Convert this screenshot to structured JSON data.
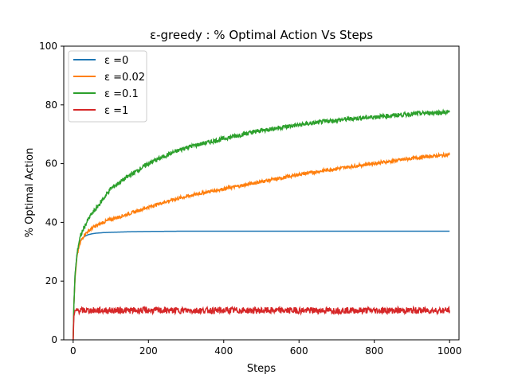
{
  "chart_data": {
    "type": "line",
    "title": "ε-greedy : % Optimal Action Vs Steps",
    "xlabel": "Steps",
    "ylabel": "% Optimal Action",
    "xlim": [
      -25,
      1025
    ],
    "ylim": [
      0,
      100
    ],
    "xticks": [
      0,
      200,
      400,
      600,
      800,
      1000
    ],
    "yticks": [
      0,
      20,
      40,
      60,
      80,
      100
    ],
    "grid": false,
    "legend_position": "top-left",
    "series": [
      {
        "name": "ε =0",
        "color": "#1f77b4",
        "x": [
          0,
          2,
          5,
          10,
          15,
          20,
          30,
          40,
          50,
          60,
          80,
          100,
          150,
          200,
          300,
          400,
          500,
          600,
          700,
          800,
          900,
          1000
        ],
        "y": [
          0,
          12,
          22,
          29,
          32,
          33.8,
          35.2,
          35.8,
          36.1,
          36.3,
          36.5,
          36.6,
          36.8,
          36.9,
          37,
          37,
          37,
          37,
          37,
          37,
          37,
          37
        ]
      },
      {
        "name": "ε =0.02",
        "color": "#ff7f0e",
        "x": [
          0,
          2,
          5,
          10,
          15,
          20,
          30,
          40,
          50,
          60,
          80,
          100,
          150,
          200,
          250,
          300,
          350,
          400,
          450,
          500,
          550,
          600,
          650,
          700,
          750,
          800,
          850,
          900,
          950,
          1000
        ],
        "y": [
          0,
          12,
          21,
          28,
          31.5,
          33.5,
          35.8,
          37,
          38,
          38.8,
          40,
          41,
          43,
          45.2,
          47.2,
          48.8,
          50.2,
          51.4,
          52.6,
          53.9,
          55,
          56.3,
          57.3,
          58.3,
          59.2,
          60.1,
          60.9,
          61.8,
          62.5,
          63
        ]
      },
      {
        "name": "ε =0.1",
        "color": "#2ca02c",
        "x": [
          0,
          2,
          5,
          10,
          15,
          20,
          30,
          40,
          50,
          60,
          80,
          100,
          150,
          200,
          250,
          300,
          350,
          400,
          450,
          500,
          550,
          600,
          650,
          700,
          750,
          800,
          850,
          900,
          950,
          1000
        ],
        "y": [
          0,
          12,
          22,
          29,
          33,
          35.5,
          38.5,
          41,
          43,
          44.5,
          48,
          51.5,
          56,
          60,
          63,
          65.5,
          67,
          68.5,
          70,
          71.3,
          72.3,
          73.2,
          74,
          74.8,
          75.4,
          75.9,
          76.4,
          76.9,
          77.3,
          77.5
        ]
      },
      {
        "name": "ε =1",
        "color": "#d62728",
        "x": [
          0,
          2,
          5,
          10,
          50,
          100,
          200,
          300,
          400,
          500,
          600,
          700,
          800,
          900,
          1000
        ],
        "y": [
          0,
          8,
          10,
          10,
          10,
          10,
          10,
          10,
          10,
          10,
          10,
          10,
          10,
          10,
          10
        ]
      }
    ]
  }
}
